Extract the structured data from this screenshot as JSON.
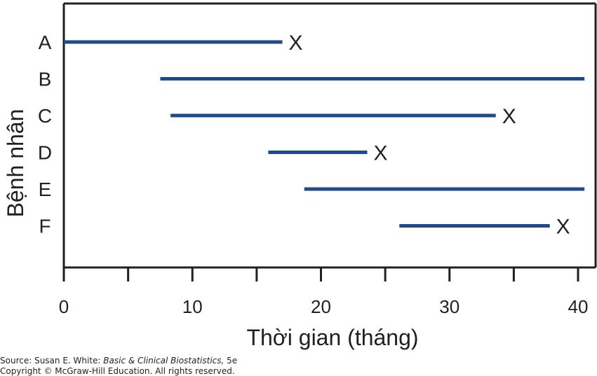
{
  "chart_data": {
    "type": "timeline",
    "ylabel": "Bệnh nhân",
    "xlabel": "Thời gian (tháng)",
    "xlim": [
      0,
      40.5
    ],
    "xticks": [
      0,
      10,
      20,
      30,
      40
    ],
    "xminor_ticks": [
      5,
      15,
      25,
      35
    ],
    "line_color": "#1f4a8c",
    "patients": [
      {
        "label": "A",
        "start": 0,
        "end": 17,
        "event": true,
        "event_marker": "X"
      },
      {
        "label": "B",
        "start": 7.5,
        "end": 40.5,
        "event": false,
        "event_marker": ""
      },
      {
        "label": "C",
        "start": 8.3,
        "end": 33.6,
        "event": true,
        "event_marker": "X"
      },
      {
        "label": "D",
        "start": 15.9,
        "end": 23.6,
        "event": true,
        "event_marker": "X"
      },
      {
        "label": "E",
        "start": 18.7,
        "end": 40.5,
        "event": false,
        "event_marker": ""
      },
      {
        "label": "F",
        "start": 26.1,
        "end": 37.8,
        "event": true,
        "event_marker": "X"
      }
    ]
  },
  "source": {
    "prefix": "Source: Susan E. White: ",
    "book_title": "Basic & Clinical Biostatistics,",
    "edition": " 5e",
    "copyright": "Copyright © McGraw-Hill Education. All rights reserved."
  }
}
